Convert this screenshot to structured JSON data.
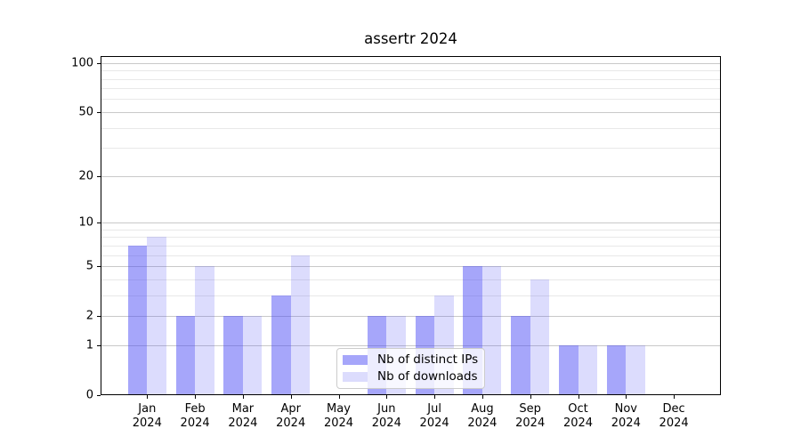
{
  "chart_data": {
    "type": "bar",
    "title": "assertr 2024",
    "categories": [
      "Jan",
      "Feb",
      "Mar",
      "Apr",
      "May",
      "Jun",
      "Jul",
      "Aug",
      "Sep",
      "Oct",
      "Nov",
      "Dec"
    ],
    "category_year": "2024",
    "series": [
      {
        "key": "distinct-ips",
        "name": "Nb of distinct IPs",
        "color": "#4646f5",
        "alpha": 0.48,
        "values": [
          7,
          2,
          2,
          3,
          0,
          2,
          2,
          5,
          2,
          1,
          1,
          0
        ]
      },
      {
        "key": "downloads",
        "name": "Nb of downloads",
        "color": "#4646f5",
        "alpha": 0.19,
        "values": [
          8,
          5,
          2,
          6,
          0,
          2,
          3,
          5,
          4,
          1,
          1,
          0
        ]
      }
    ],
    "yscale": "log1p",
    "ylim": [
      0,
      110
    ],
    "yticks": [
      0,
      1,
      2,
      5,
      10,
      20,
      50,
      100
    ],
    "minor_gridlines": [
      3,
      4,
      6,
      7,
      8,
      9,
      30,
      40,
      60,
      70,
      80,
      90
    ],
    "grid": "horizontal-major-and-minor",
    "legend_position": "lower-center-inside",
    "colors": {
      "background": "#ffffff",
      "axis": "#000000",
      "major_grid": "#c9c9c9",
      "minor_grid": "#e8e8e8",
      "legend_border": "#cccccc",
      "text": "#000000"
    }
  }
}
